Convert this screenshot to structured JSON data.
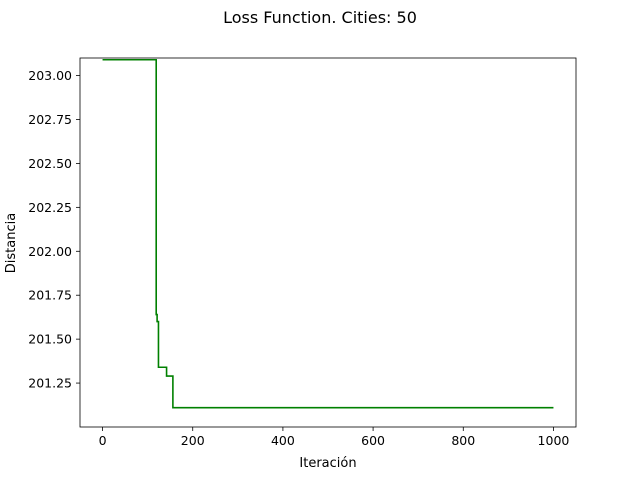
{
  "chart_data": {
    "type": "line",
    "title": "Loss Function. Cities: 50",
    "xlabel": "Iteración",
    "ylabel": "Distancia",
    "xlim": [
      -50,
      1050
    ],
    "ylim": [
      201.0,
      203.1
    ],
    "xticks": [
      0,
      200,
      400,
      600,
      800,
      1000
    ],
    "xtick_labels": [
      "0",
      "200",
      "400",
      "600",
      "800",
      "1000"
    ],
    "yticks": [
      201.25,
      201.5,
      201.75,
      202.0,
      202.25,
      202.5,
      202.75,
      203.0
    ],
    "ytick_labels": [
      "201.25",
      "201.50",
      "201.75",
      "202.00",
      "202.25",
      "202.50",
      "202.75",
      "203.00"
    ],
    "grid": false,
    "series": [
      {
        "color": "#008000",
        "x": [
          0,
          119,
          119,
          121,
          121,
          124,
          124,
          142,
          142,
          148,
          148,
          156,
          156,
          1000
        ],
        "y": [
          203.09,
          203.09,
          201.64,
          201.64,
          201.6,
          201.6,
          201.34,
          201.34,
          201.29,
          201.29,
          201.29,
          201.29,
          201.11,
          201.11
        ]
      }
    ]
  }
}
